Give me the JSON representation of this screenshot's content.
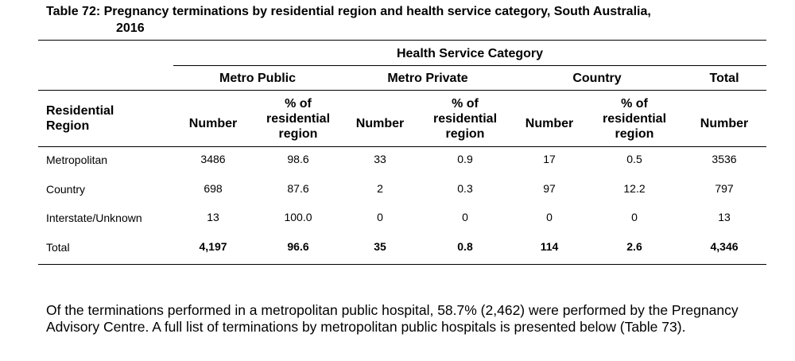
{
  "title": {
    "line1": "Table 72: Pregnancy terminations by residential region and health service category, South Australia,",
    "line2": "2016"
  },
  "table": {
    "super_header": "Health Service Category",
    "groups": [
      "Metro Public",
      "Metro Private",
      "Country",
      "Total"
    ],
    "row_header": [
      "Residential",
      "Region"
    ],
    "col_number": "Number",
    "col_pct": [
      "% of",
      "residential",
      "region"
    ],
    "rows": [
      {
        "region": "Metropolitan",
        "cells": [
          "3486",
          "98.6",
          "33",
          "0.9",
          "17",
          "0.5",
          "3536"
        ]
      },
      {
        "region": "Country",
        "cells": [
          "698",
          "87.6",
          "2",
          "0.3",
          "97",
          "12.2",
          "797"
        ]
      },
      {
        "region": "Interstate/Unknown",
        "cells": [
          "13",
          "100.0",
          "0",
          "0",
          "0",
          "0",
          "13"
        ]
      },
      {
        "region": "Total",
        "cells": [
          "4,197",
          "96.6",
          "35",
          "0.8",
          "114",
          "2.6",
          "4,346"
        ]
      }
    ]
  },
  "paragraph": "Of the terminations performed in a metropolitan public hospital, 58.7% (2,462) were performed by the Pregnancy Advisory Centre.  A full list of terminations by metropolitan public hospitals is presented below (Table 73)."
}
